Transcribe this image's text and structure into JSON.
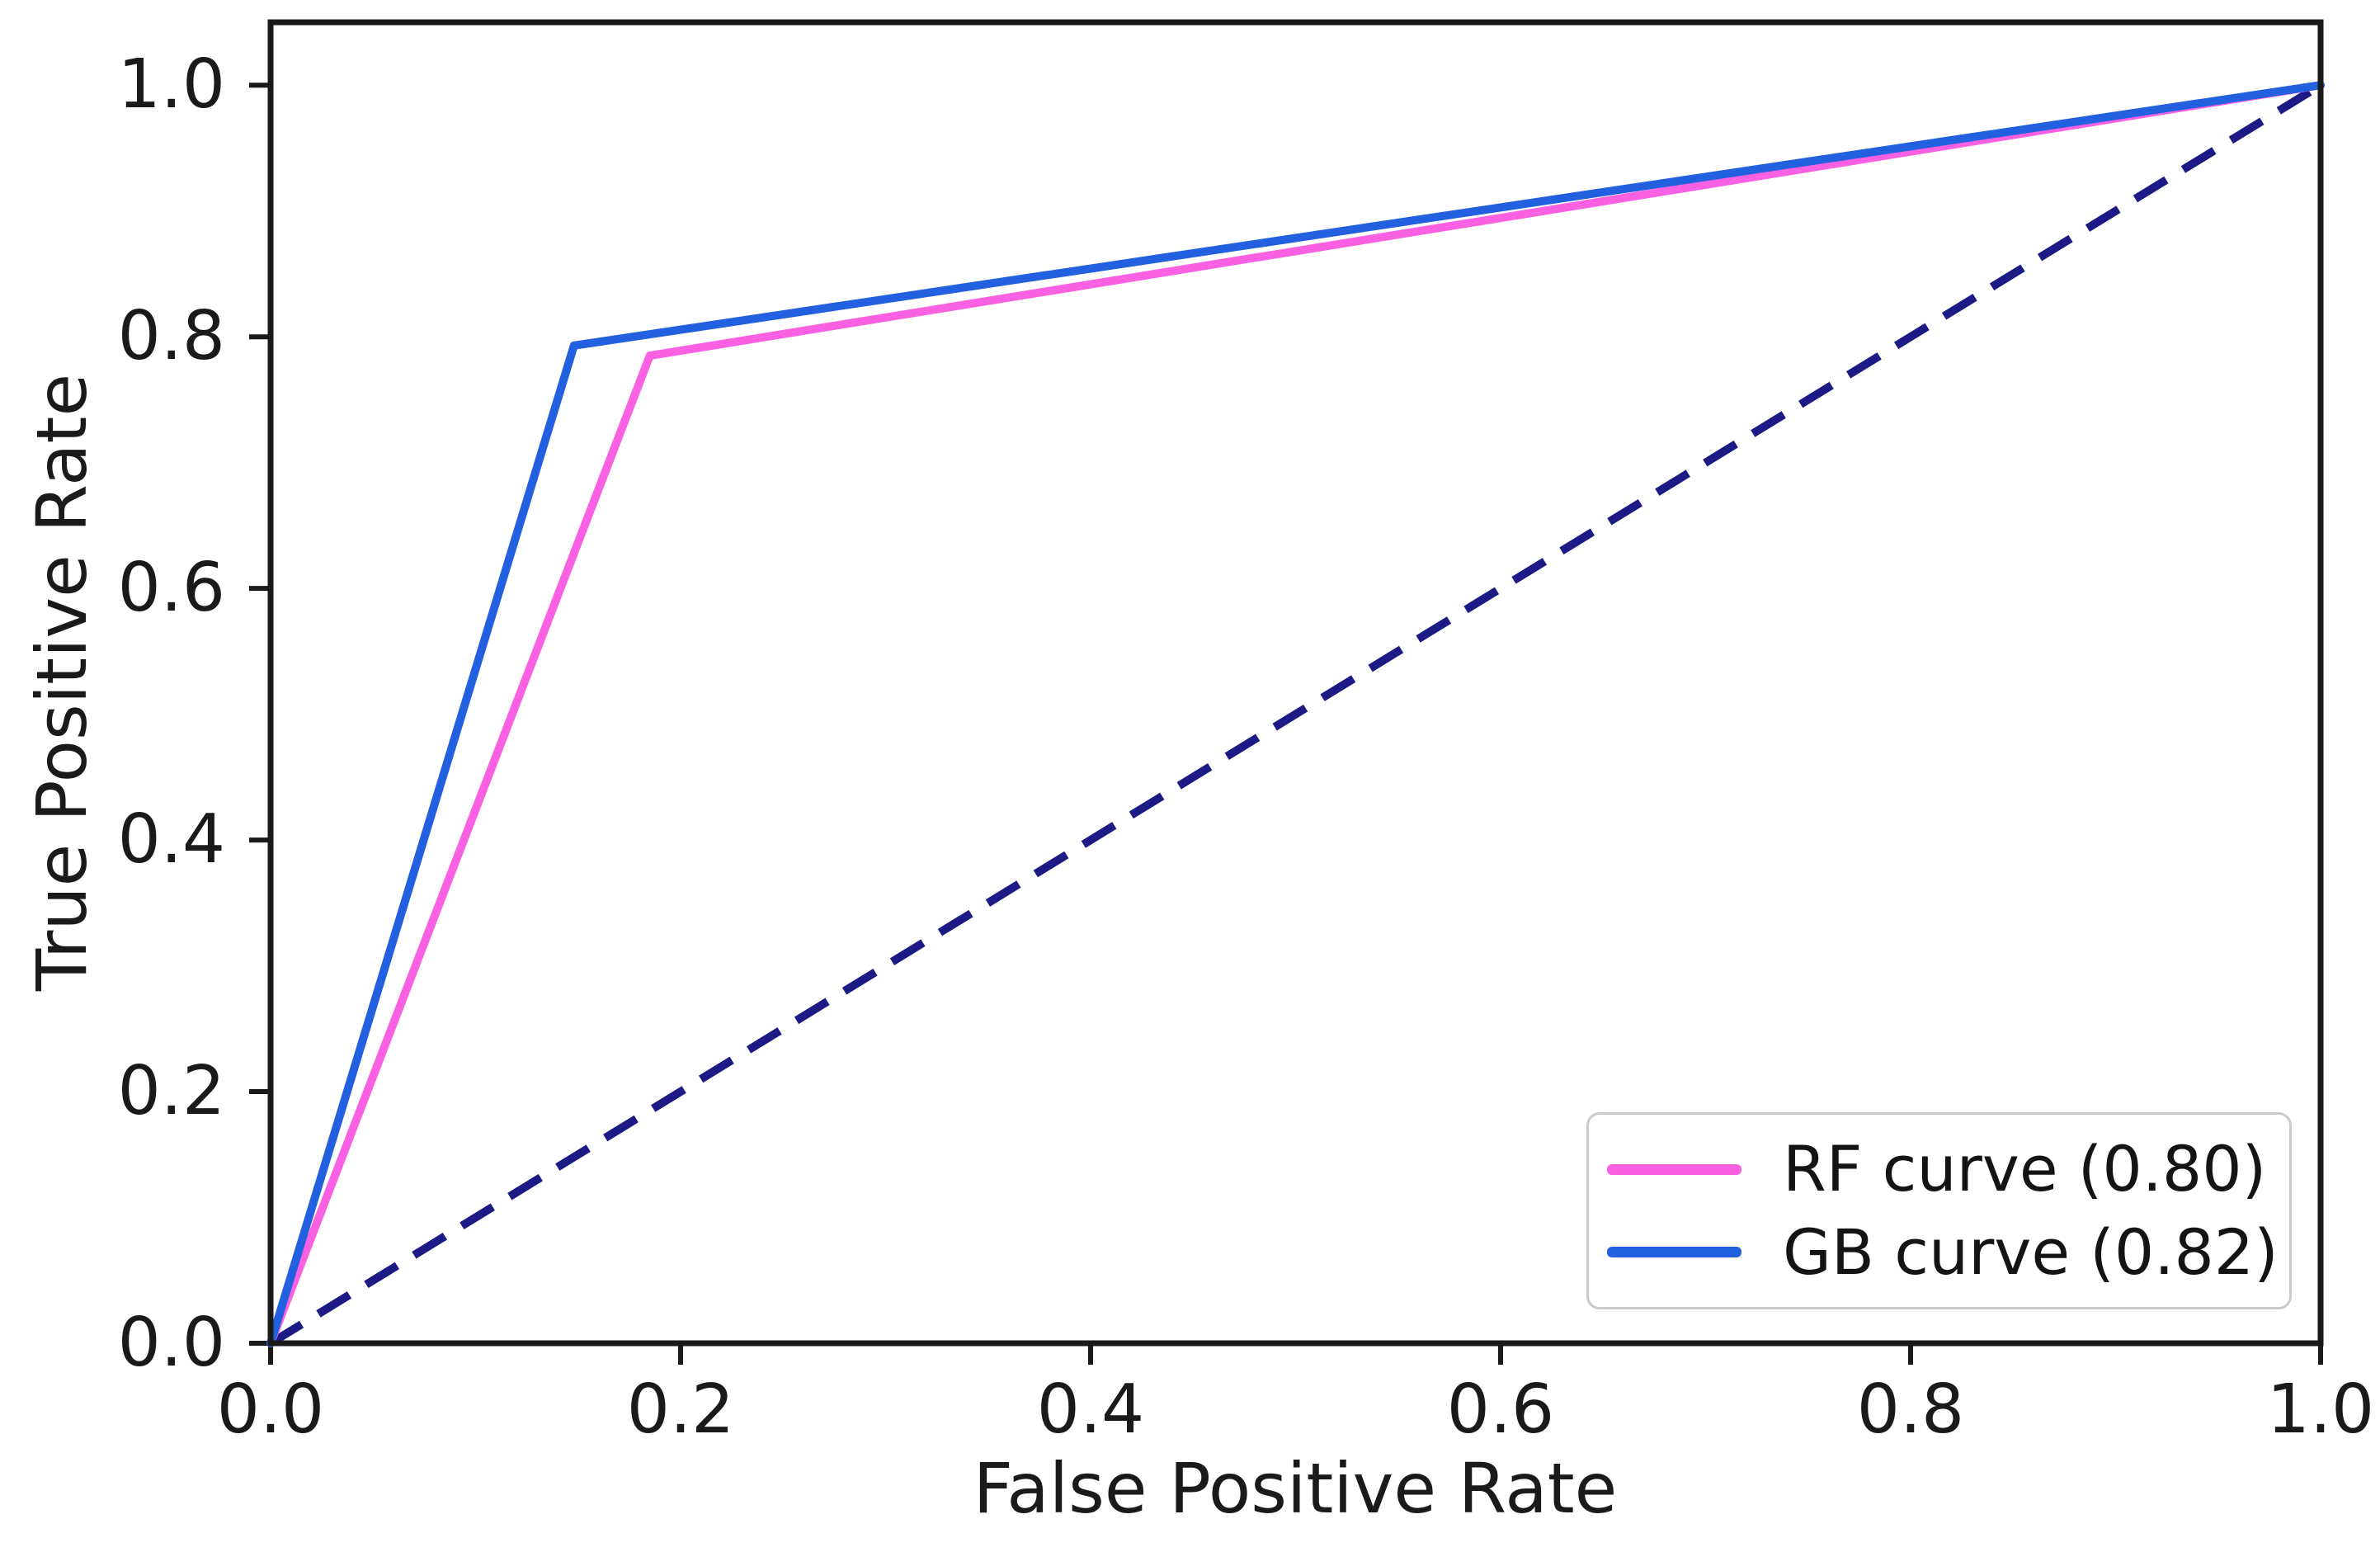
{
  "chart_data": {
    "type": "line",
    "title": "",
    "xlabel": "False Positive Rate",
    "ylabel": "True Positive Rate",
    "xlim": [
      0.0,
      1.0
    ],
    "ylim": [
      0.0,
      1.05
    ],
    "grid": false,
    "x_ticks": [
      0.0,
      0.2,
      0.4,
      0.6,
      0.8,
      1.0
    ],
    "y_ticks": [
      0.0,
      0.2,
      0.4,
      0.6,
      0.8,
      1.0
    ],
    "x_tick_labels": [
      "0.0",
      "0.2",
      "0.4",
      "0.6",
      "0.8",
      "1.0"
    ],
    "y_tick_labels": [
      "0.0",
      "0.2",
      "0.4",
      "0.6",
      "0.8",
      "1.0"
    ],
    "legend_position": "lower right",
    "series": [
      {
        "id": "chance",
        "name": "chance diagonal",
        "style": "dashed",
        "color": "#1c1a85",
        "in_legend": false,
        "points": [
          [
            0.0,
            0.0
          ],
          [
            1.0,
            1.0
          ]
        ]
      },
      {
        "id": "rf",
        "name": "RF curve (0.80)",
        "style": "solid",
        "color": "#fa60e2",
        "auc": 0.8,
        "in_legend": true,
        "points": [
          [
            0.0,
            0.0
          ],
          [
            0.185,
            0.785
          ],
          [
            1.0,
            1.0
          ]
        ]
      },
      {
        "id": "gb",
        "name": "GB curve (0.82)",
        "style": "solid",
        "color": "#2360e0",
        "auc": 0.82,
        "in_legend": true,
        "points": [
          [
            0.0,
            0.0
          ],
          [
            0.148,
            0.793
          ],
          [
            1.0,
            1.0
          ]
        ]
      }
    ]
  },
  "legend": {
    "entries": [
      {
        "label": "RF curve (0.80)",
        "color": "#fa60e2"
      },
      {
        "label": "GB curve (0.82)",
        "color": "#2360e0"
      }
    ]
  }
}
